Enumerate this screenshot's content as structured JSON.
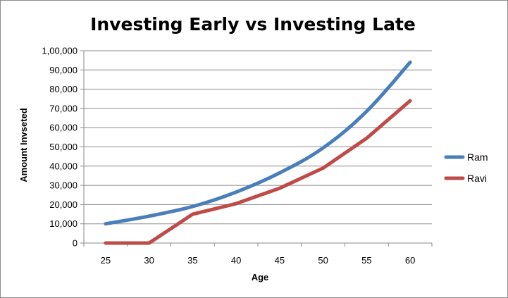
{
  "chart_data": {
    "type": "line",
    "title": "Investing Early vs Investing Late",
    "xlabel": "Age",
    "ylabel": "Amount  Invseted",
    "categories": [
      "25",
      "30",
      "35",
      "40",
      "45",
      "50",
      "55",
      "60"
    ],
    "y_tick_labels": [
      "0",
      "10,000",
      "20,000",
      "30,000",
      "40,000",
      "50,000",
      "60,000",
      "70,000",
      "80,000",
      "90,000",
      "1,00,000"
    ],
    "ylim": [
      0,
      100000
    ],
    "y_step": 10000,
    "grid": true,
    "legend_position": "right",
    "series": [
      {
        "name": "Ram",
        "color": "#4a7ebb",
        "values": [
          10000,
          14000,
          19000,
          26500,
          36500,
          49500,
          68500,
          94000
        ]
      },
      {
        "name": "Ravi",
        "color": "#be4b48",
        "values": [
          0,
          0,
          15000,
          20500,
          28500,
          39000,
          54500,
          74000
        ]
      }
    ]
  }
}
